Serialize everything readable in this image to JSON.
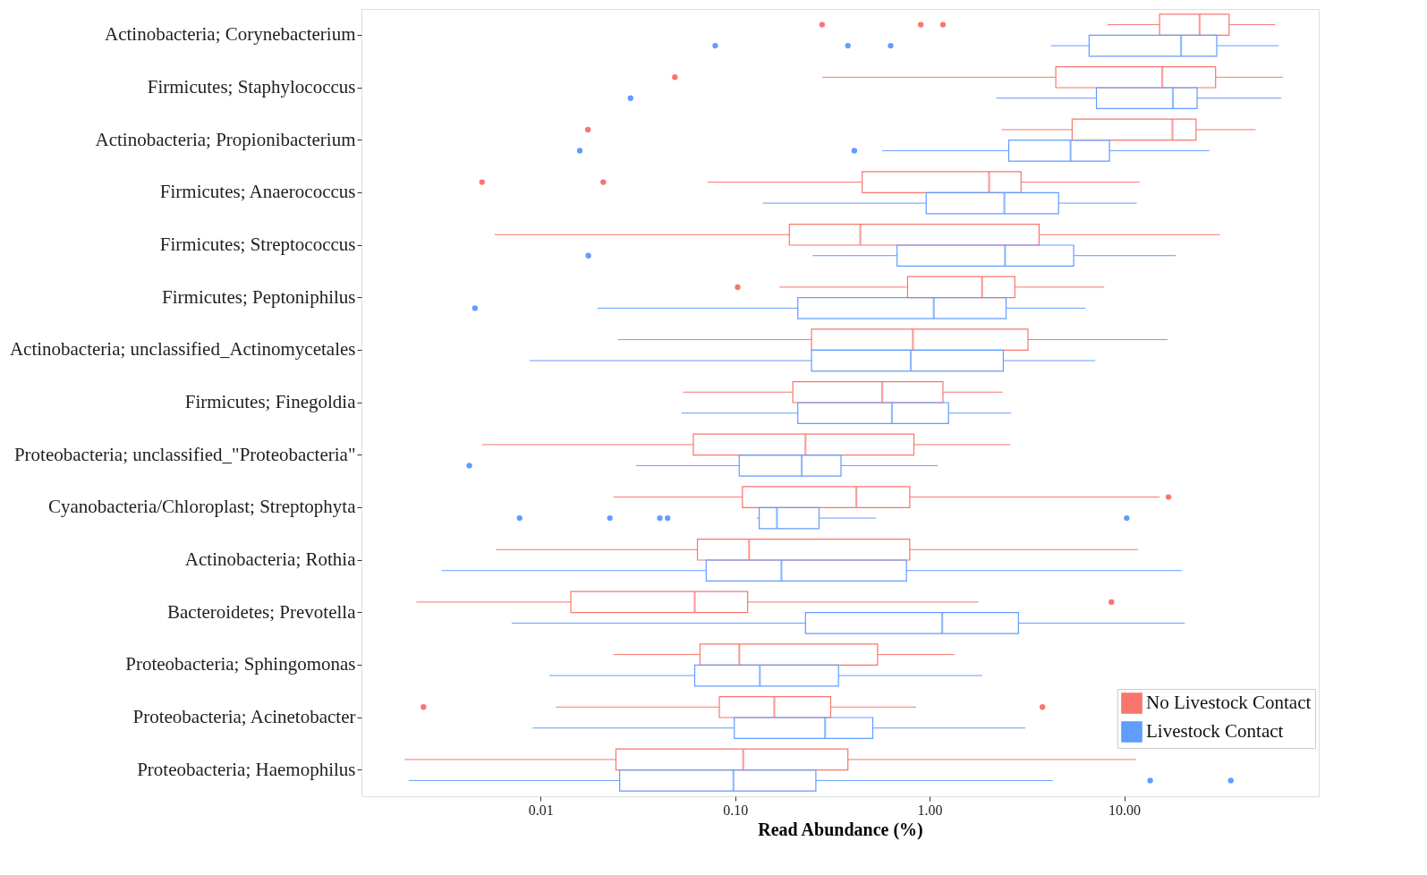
{
  "chart_data": {
    "type": "box",
    "orientation": "horizontal",
    "xlabel": "Read Abundance (%)",
    "log": "x",
    "xlim": [
      0.0012,
      100
    ],
    "xticks": [
      0.01,
      {
        "value": 0.1,
        "label": "0.10"
      },
      {
        "value": 1,
        "label": "1.00"
      },
      {
        "value": 10,
        "label": "10.00"
      }
    ],
    "legend": "bottom right",
    "grid": false,
    "categories": [
      "Actinobacteria; Corynebacterium",
      "Firmicutes; Staphylococcus",
      "Actinobacteria; Propionibacterium",
      "Firmicutes; Anaerococcus",
      "Firmicutes; Streptococcus",
      "Firmicutes; Peptoniphilus",
      "Actinobacteria; unclassified_Actinomycetales",
      "Firmicutes; Finegoldia",
      "Proteobacteria; unclassified_\"Proteobacteria\"",
      "Cyanobacteria/Chloroplast; Streptophyta",
      "Actinobacteria; Rothia",
      "Bacteroidetes; Prevotella",
      "Proteobacteria; Sphingomonas",
      "Proteobacteria; Acinetobacter",
      "Proteobacteria; Haemophilus"
    ],
    "series": [
      {
        "name": "No Livestock Contact",
        "color": "#f8766d",
        "boxes": [
          {
            "low": 8.2,
            "q1": 15.2,
            "median": 24.4,
            "q3": 34.6,
            "high": 59.7,
            "outliers": [
              0.28,
              0.9,
              1.17
            ]
          },
          {
            "low": 0.28,
            "q1": 4.45,
            "median": 15.7,
            "q3": 29.5,
            "high": 65.6,
            "outliers": [
              0.049
            ]
          },
          {
            "low": 2.34,
            "q1": 5.4,
            "median": 17.7,
            "q3": 23.4,
            "high": 47.4,
            "outliers": [
              0.0175
            ]
          },
          {
            "low": 0.072,
            "q1": 0.45,
            "median": 2.02,
            "q3": 2.95,
            "high": 12.0,
            "outliers": [
              0.005,
              0.021
            ]
          },
          {
            "low": 0.0058,
            "q1": 0.19,
            "median": 0.44,
            "q3": 3.65,
            "high": 31.1
          },
          {
            "low": 0.169,
            "q1": 0.77,
            "median": 1.86,
            "q3": 2.74,
            "high": 7.9,
            "outliers": [
              0.103
            ]
          },
          {
            "low": 0.025,
            "q1": 0.247,
            "median": 0.82,
            "q3": 3.2,
            "high": 16.7
          },
          {
            "low": 0.054,
            "q1": 0.198,
            "median": 0.57,
            "q3": 1.17,
            "high": 2.37
          },
          {
            "low": 0.005,
            "q1": 0.061,
            "median": 0.23,
            "q3": 0.83,
            "high": 2.6
          },
          {
            "low": 0.0237,
            "q1": 0.109,
            "median": 0.42,
            "q3": 0.79,
            "high": 15.2,
            "outliers": [
              16.9
            ]
          },
          {
            "low": 0.0059,
            "q1": 0.064,
            "median": 0.118,
            "q3": 0.79,
            "high": 11.8
          },
          {
            "low": 0.0023,
            "q1": 0.0143,
            "median": 0.062,
            "q3": 0.116,
            "high": 1.78,
            "outliers": [
              8.6
            ]
          },
          {
            "low": 0.0237,
            "q1": 0.066,
            "median": 0.105,
            "q3": 0.54,
            "high": 1.34
          },
          {
            "low": 0.012,
            "q1": 0.083,
            "median": 0.159,
            "q3": 0.31,
            "high": 0.85,
            "outliers": [
              0.0025,
              3.8
            ]
          },
          {
            "low": 0.002,
            "q1": 0.0244,
            "median": 0.11,
            "q3": 0.38,
            "high": 11.5
          }
        ]
      },
      {
        "name": "Livestock Contact",
        "color": "#619cff",
        "boxes": [
          {
            "low": 4.2,
            "q1": 6.6,
            "median": 19.6,
            "q3": 29.9,
            "high": 62.3,
            "outliers": [
              0.079,
              0.38,
              0.63
            ]
          },
          {
            "low": 2.2,
            "q1": 7.2,
            "median": 17.8,
            "q3": 23.7,
            "high": 64.3,
            "outliers": [
              0.029
            ]
          },
          {
            "low": 0.57,
            "q1": 2.55,
            "median": 5.3,
            "q3": 8.4,
            "high": 27.4,
            "outliers": [
              0.0159,
              0.41
            ]
          },
          {
            "low": 0.139,
            "q1": 0.96,
            "median": 2.42,
            "q3": 4.6,
            "high": 11.6
          },
          {
            "low": 0.25,
            "q1": 0.68,
            "median": 2.44,
            "q3": 5.5,
            "high": 18.4,
            "outliers": [
              0.0176
            ]
          },
          {
            "low": 0.0196,
            "q1": 0.21,
            "median": 1.05,
            "q3": 2.47,
            "high": 6.3,
            "outliers": [
              0.0046
            ]
          },
          {
            "low": 0.0088,
            "q1": 0.247,
            "median": 0.8,
            "q3": 2.39,
            "high": 7.1
          },
          {
            "low": 0.053,
            "q1": 0.21,
            "median": 0.64,
            "q3": 1.25,
            "high": 2.63
          },
          {
            "low": 0.031,
            "q1": 0.105,
            "median": 0.22,
            "q3": 0.35,
            "high": 1.1,
            "outliers": [
              0.0043
            ]
          },
          {
            "low": 0.129,
            "q1": 0.133,
            "median": 0.164,
            "q3": 0.27,
            "high": 0.53,
            "outliers": [
              0.0078,
              0.0227,
              0.041,
              0.045,
              10.3
            ]
          },
          {
            "low": 0.0031,
            "q1": 0.071,
            "median": 0.173,
            "q3": 0.76,
            "high": 19.8
          },
          {
            "low": 0.0071,
            "q1": 0.23,
            "median": 1.16,
            "q3": 2.86,
            "high": 20.5
          },
          {
            "low": 0.0111,
            "q1": 0.062,
            "median": 0.134,
            "q3": 0.34,
            "high": 1.86
          },
          {
            "low": 0.0091,
            "q1": 0.099,
            "median": 0.29,
            "q3": 0.51,
            "high": 3.1
          },
          {
            "low": 0.0021,
            "q1": 0.0255,
            "median": 0.098,
            "q3": 0.26,
            "high": 4.3,
            "outliers": [
              13.6,
              35.3
            ]
          }
        ]
      }
    ]
  }
}
